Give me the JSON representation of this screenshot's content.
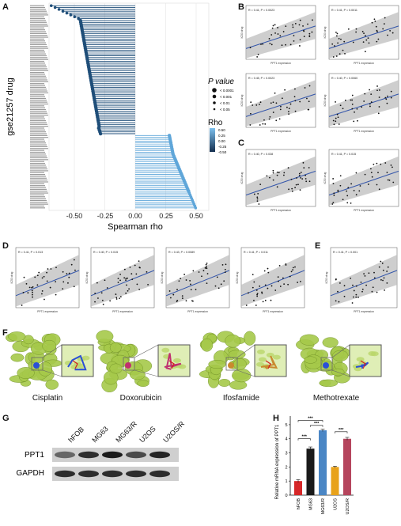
{
  "panel_labels": [
    "A",
    "B",
    "C",
    "D",
    "E",
    "F",
    "G",
    "H"
  ],
  "panel_a": {
    "ylabel": "gse21257 drug",
    "xlabel": "Spearman rho",
    "x_ticks": [
      "-0.50",
      "-0.25",
      "0.00",
      "0.25",
      "0.50"
    ],
    "neg_color": "#1f4e79",
    "pos_color": "#5fa6d9"
  },
  "legend": {
    "p_title": "P value",
    "p_items": [
      "< 0.0001",
      "< 0.001",
      "< 0.01",
      "< 0.05"
    ],
    "rho_title": "Rho",
    "rho_ticks": [
      "0.50",
      "0.25",
      "0.00",
      "-0.25",
      "-0.50"
    ]
  },
  "scatter_common": {
    "xlabel": "PPT1 expression",
    "line_color": "#3355aa"
  },
  "panel_b": [
    {
      "stat": "R = 0.41, P = 0.0023",
      "ylabel": "IC50 drug"
    },
    {
      "stat": "R = 0.41, P = 0.0011",
      "ylabel": "IC50 drug"
    },
    {
      "stat": "R = 0.45, P = 0.0023",
      "ylabel": "IC50 drug"
    },
    {
      "stat": "R = 0.40, P = 0.0060",
      "ylabel": "IC50 drug"
    }
  ],
  "panel_c": [
    {
      "stat": "R = 0.40, P = 0.038",
      "ylabel": "IC50 drug"
    },
    {
      "stat": "R = 0.41, P = 0.015",
      "ylabel": "IC50 drug"
    }
  ],
  "panel_d": [
    {
      "stat": "R = 0.41, P = 0.013",
      "ylabel": "IC50 drug"
    },
    {
      "stat": "R = 0.40, P = 0.015",
      "ylabel": "IC50 drug"
    },
    {
      "stat": "R = 0.43, P = 0.0089",
      "ylabel": "IC50 drug"
    },
    {
      "stat": "R = 0.41, P = 0.011",
      "ylabel": "IC50 drug"
    }
  ],
  "panel_e": [
    {
      "stat": "R = 0.41, P = 0.001",
      "ylabel": "IC50 drug"
    }
  ],
  "panel_f": {
    "drugs": [
      "Cisplatin",
      "Doxorubicin",
      "Ifosfamide",
      "Methotrexate"
    ],
    "protein_color": "#a6c94a"
  },
  "panel_g": {
    "lanes": [
      "hFOB",
      "MG63",
      "MG63/R",
      "U2OS",
      "U2OS/R"
    ],
    "rows": [
      "PPT1",
      "GAPDH"
    ]
  },
  "chart_data": {
    "type": "bar",
    "title": "",
    "xlabel": "",
    "ylabel": "Relative mRNA expression of PPT1",
    "categories": [
      "hFOB",
      "MG63",
      "MG63/R",
      "U2OS",
      "U2OS/R"
    ],
    "values": [
      1.0,
      3.3,
      4.6,
      2.0,
      4.0
    ],
    "errors": [
      0.1,
      0.12,
      0.08,
      0.06,
      0.1
    ],
    "colors": [
      "#d62728",
      "#1a1a1a",
      "#4a86c5",
      "#e8a21a",
      "#b5455d"
    ],
    "ylim": [
      0,
      5.5
    ],
    "y_ticks": [
      "0",
      "1",
      "2",
      "3",
      "4",
      "5"
    ],
    "significance": "***"
  }
}
